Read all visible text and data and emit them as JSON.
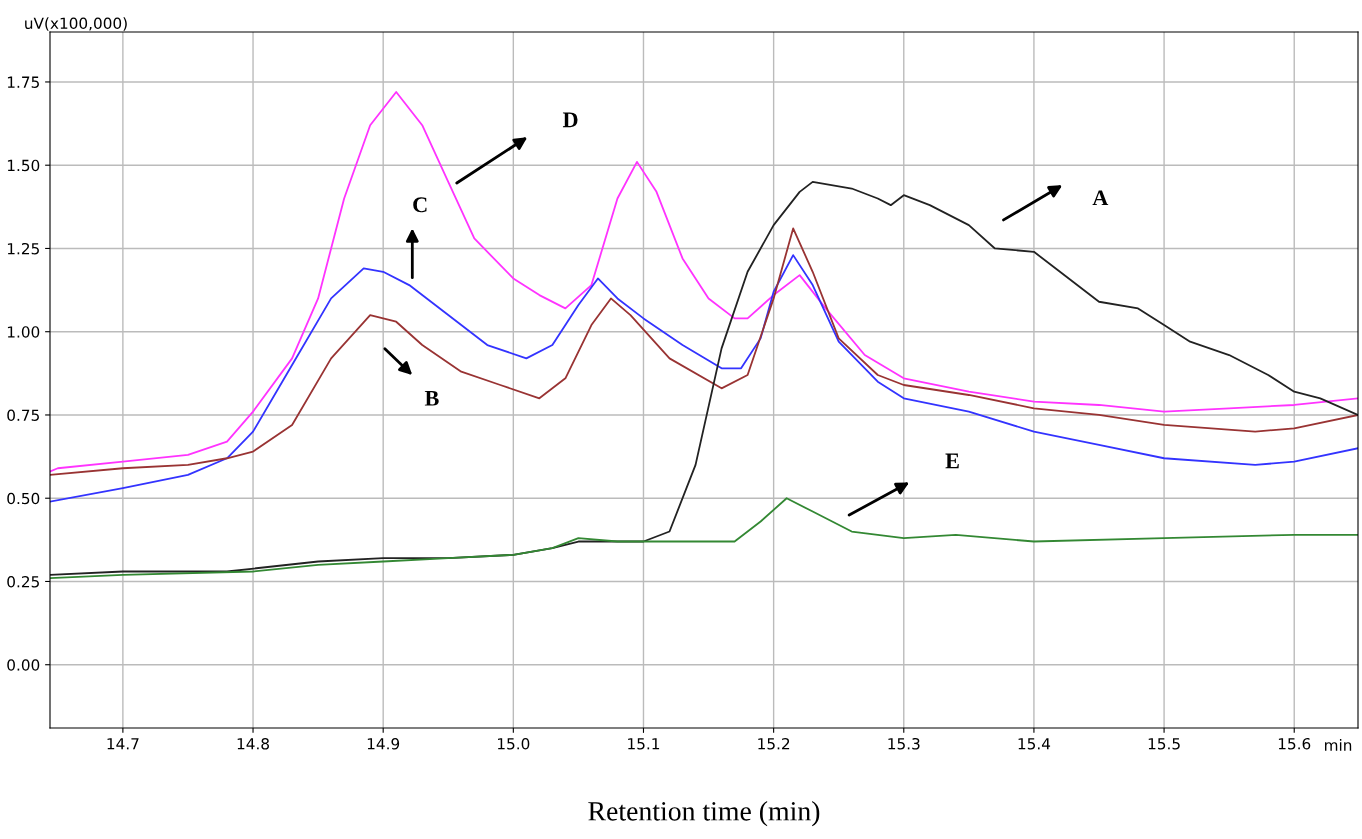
{
  "chart_data": {
    "type": "line",
    "xlabel": "Retention time (min)",
    "ylabel": "uV(x100,000)",
    "xlim": [
      14.644,
      15.649
    ],
    "ylim": [
      -0.19,
      1.9
    ],
    "xticks": [
      {
        "value": 14.7,
        "label": "14.7"
      },
      {
        "value": 14.8,
        "label": "14.8"
      },
      {
        "value": 14.9,
        "label": "14.9"
      },
      {
        "value": 15.0,
        "label": "15.0"
      },
      {
        "value": 15.1,
        "label": "15.1"
      },
      {
        "value": 15.2,
        "label": "15.2"
      },
      {
        "value": 15.3,
        "label": "15.3"
      },
      {
        "value": 15.4,
        "label": "15.4"
      },
      {
        "value": 15.5,
        "label": "15.5"
      },
      {
        "value": 15.6,
        "label": "15.6"
      }
    ],
    "yticks": [
      {
        "value": 0,
        "label": "0.00"
      },
      {
        "value": 0.25,
        "label": "0.25"
      },
      {
        "value": 0.5,
        "label": "0.50"
      },
      {
        "value": 0.75,
        "label": "0.75"
      },
      {
        "value": 1.0,
        "label": "1.00"
      },
      {
        "value": 1.25,
        "label": "1.25"
      },
      {
        "value": 1.5,
        "label": "1.50"
      },
      {
        "value": 1.75,
        "label": "1.75"
      }
    ],
    "grid": true,
    "marker": "none",
    "line_style": "solid",
    "series": [
      {
        "color": "#ff33ff",
        "x": [
          14.644,
          14.65,
          14.7,
          14.75,
          14.78,
          14.8,
          14.83,
          14.85,
          14.87,
          14.89,
          14.91,
          14.93,
          14.95,
          14.97,
          15.0,
          15.02,
          15.04,
          15.06,
          15.08,
          15.095,
          15.11,
          15.13,
          15.15,
          15.17,
          15.18,
          15.2,
          15.22,
          15.24,
          15.27,
          15.3,
          15.35,
          15.4,
          15.45,
          15.5,
          15.55,
          15.6,
          15.649
        ],
        "values": [
          0.58,
          0.59,
          0.61,
          0.63,
          0.67,
          0.76,
          0.92,
          1.1,
          1.4,
          1.62,
          1.72,
          1.62,
          1.45,
          1.28,
          1.16,
          1.11,
          1.07,
          1.14,
          1.4,
          1.51,
          1.42,
          1.22,
          1.1,
          1.04,
          1.04,
          1.11,
          1.17,
          1.07,
          0.93,
          0.86,
          0.82,
          0.79,
          0.78,
          0.76,
          0.77,
          0.78,
          0.8
        ]
      },
      {
        "color": "#3333ff",
        "x": [
          14.644,
          14.7,
          14.75,
          14.78,
          14.8,
          14.83,
          14.86,
          14.885,
          14.9,
          14.92,
          14.95,
          14.98,
          15.01,
          15.03,
          15.05,
          15.065,
          15.08,
          15.1,
          15.13,
          15.16,
          15.175,
          15.19,
          15.2,
          15.215,
          15.23,
          15.25,
          15.28,
          15.3,
          15.35,
          15.4,
          15.45,
          15.5,
          15.57,
          15.6,
          15.649
        ],
        "values": [
          0.49,
          0.53,
          0.57,
          0.62,
          0.7,
          0.9,
          1.1,
          1.19,
          1.18,
          1.14,
          1.05,
          0.96,
          0.92,
          0.96,
          1.08,
          1.16,
          1.1,
          1.04,
          0.96,
          0.89,
          0.89,
          0.98,
          1.12,
          1.23,
          1.14,
          0.97,
          0.85,
          0.8,
          0.76,
          0.7,
          0.66,
          0.62,
          0.6,
          0.61,
          0.65
        ]
      },
      {
        "color": "#993333",
        "x": [
          14.644,
          14.7,
          14.75,
          14.78,
          14.8,
          14.83,
          14.86,
          14.89,
          14.91,
          14.93,
          14.96,
          14.99,
          15.02,
          15.04,
          15.06,
          15.075,
          15.09,
          15.12,
          15.16,
          15.18,
          15.2,
          15.215,
          15.23,
          15.25,
          15.28,
          15.3,
          15.35,
          15.4,
          15.45,
          15.5,
          15.57,
          15.6,
          15.649
        ],
        "values": [
          0.57,
          0.59,
          0.6,
          0.62,
          0.64,
          0.72,
          0.92,
          1.05,
          1.03,
          0.96,
          0.88,
          0.84,
          0.8,
          0.86,
          1.02,
          1.1,
          1.05,
          0.92,
          0.83,
          0.87,
          1.1,
          1.31,
          1.18,
          0.98,
          0.87,
          0.84,
          0.81,
          0.77,
          0.75,
          0.72,
          0.7,
          0.71,
          0.75
        ]
      },
      {
        "color": "#222222",
        "x": [
          14.644,
          14.7,
          14.78,
          14.85,
          14.9,
          14.95,
          15.0,
          15.03,
          15.05,
          15.1,
          15.12,
          15.14,
          15.16,
          15.18,
          15.2,
          15.22,
          15.23,
          15.26,
          15.28,
          15.29,
          15.3,
          15.32,
          15.35,
          15.37,
          15.4,
          15.42,
          15.45,
          15.48,
          15.5,
          15.52,
          15.55,
          15.58,
          15.6,
          15.62,
          15.649
        ],
        "values": [
          0.27,
          0.28,
          0.28,
          0.31,
          0.32,
          0.32,
          0.33,
          0.35,
          0.37,
          0.37,
          0.4,
          0.6,
          0.95,
          1.18,
          1.32,
          1.42,
          1.45,
          1.43,
          1.4,
          1.38,
          1.41,
          1.38,
          1.32,
          1.25,
          1.24,
          1.18,
          1.09,
          1.07,
          1.02,
          0.97,
          0.93,
          0.87,
          0.82,
          0.8,
          0.75
        ]
      },
      {
        "color": "#338833",
        "x": [
          14.644,
          14.7,
          14.8,
          14.85,
          14.9,
          14.95,
          15.0,
          15.03,
          15.05,
          15.08,
          15.12,
          15.17,
          15.19,
          15.21,
          15.23,
          15.26,
          15.3,
          15.34,
          15.4,
          15.5,
          15.6,
          15.649
        ],
        "values": [
          0.26,
          0.27,
          0.28,
          0.3,
          0.31,
          0.32,
          0.33,
          0.35,
          0.38,
          0.37,
          0.37,
          0.37,
          0.43,
          0.5,
          0.46,
          0.4,
          0.38,
          0.39,
          0.37,
          0.38,
          0.39,
          0.39
        ]
      }
    ],
    "annotations": [
      "D",
      "C",
      "B",
      "A",
      "E",
      "min"
    ]
  }
}
